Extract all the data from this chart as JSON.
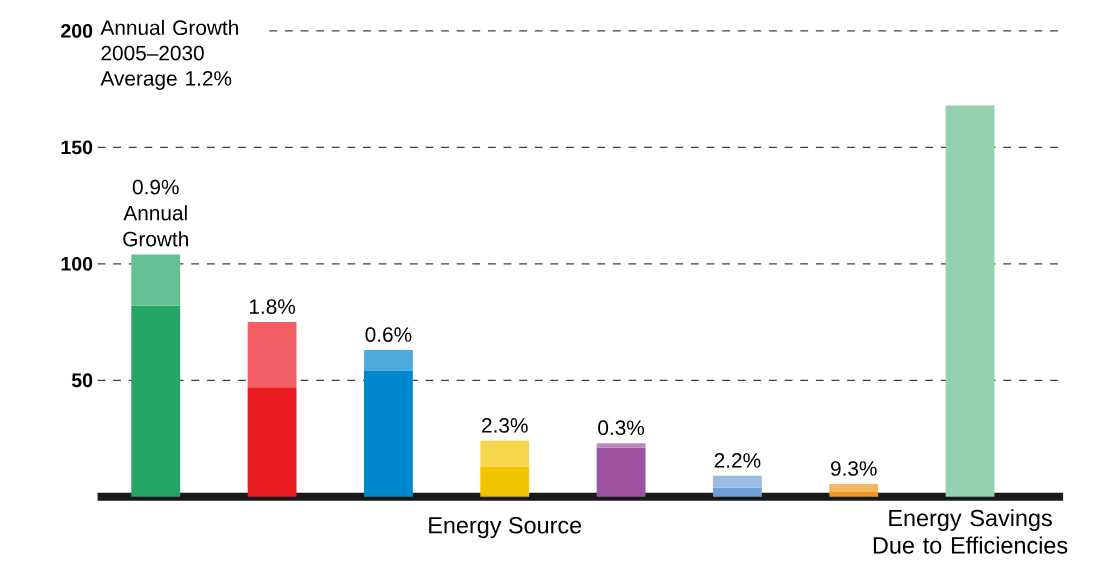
{
  "chart_data": {
    "type": "bar",
    "stacked": true,
    "xlabel": "Energy Source",
    "categories": [
      null,
      null,
      null,
      null,
      null,
      null,
      null,
      "Energy Savings Due to Efficiencies"
    ],
    "series": [
      {
        "colors": [
          "#22a565",
          "#ec1c24",
          "#0088cf",
          "#f2c500",
          "#9e53a0",
          "#6f9fd8",
          "#f0961e",
          "#94d1ad"
        ],
        "values": [
          82,
          47,
          54,
          13,
          21,
          4,
          2,
          null
        ]
      },
      {
        "colors": [
          "#64c093",
          "#f26066",
          "#4dacdd",
          "#f6d64d",
          "#bb87bd",
          "#9abce4",
          "#f5b662",
          "#94d1ad"
        ],
        "values": [
          22,
          28,
          9,
          11,
          2,
          5,
          3.5,
          168
        ]
      }
    ],
    "ylim": [
      0,
      200
    ],
    "yticks": [
      50,
      100,
      150,
      200
    ],
    "grid": "y",
    "annotations": [
      "Annual Growth 2005–2030 Average 1.2%",
      "0.9% Annual Growth",
      "1.8%",
      "0.6%",
      "2.3%",
      "0.3%",
      "2.2%",
      "9.3%"
    ]
  }
}
